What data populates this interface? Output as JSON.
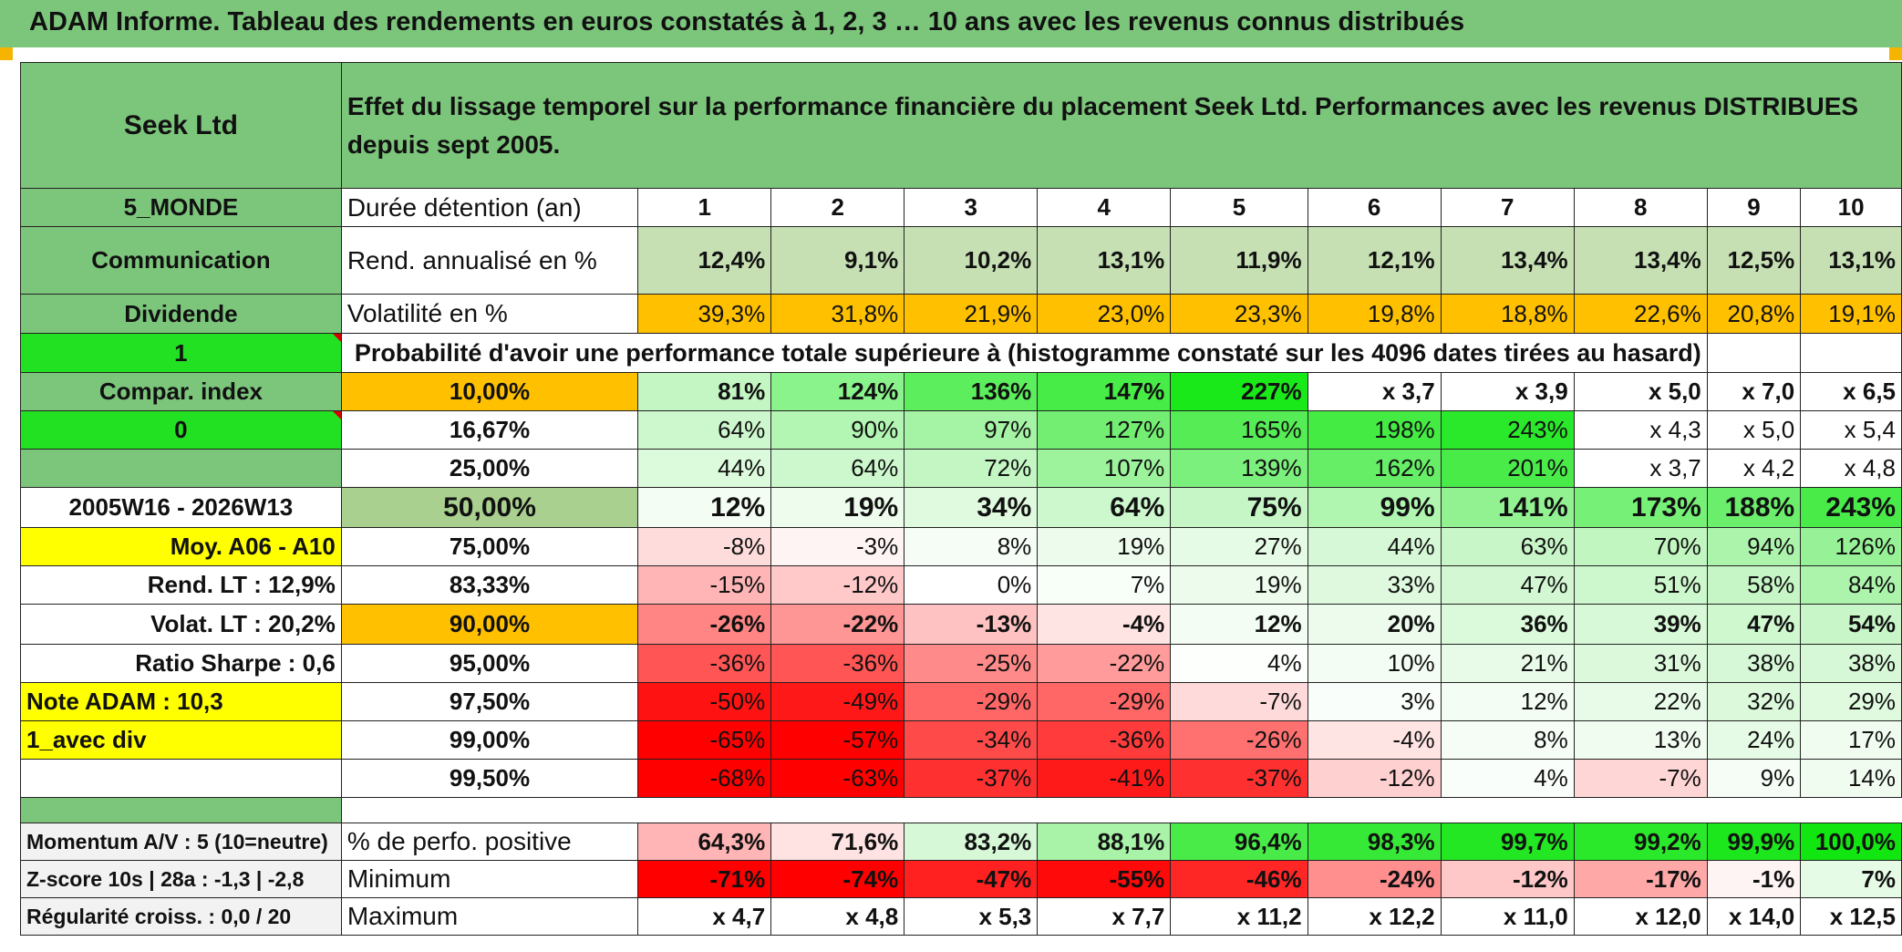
{
  "title": "ADAM Informe. Tableau des rendements en euros constatés à 1, 2, 3 … 10 ans avec les revenus connus distribués",
  "header": {
    "fund": "Seek Ltd",
    "description": "Effet du lissage temporel sur la performance financière du placement Seek Ltd. Performances avec les revenus DISTRIBUES depuis sept 2005."
  },
  "sidebar": {
    "region": "5_MONDE",
    "sector": "Communication",
    "dividend_label": "Dividende",
    "dividend_flag": "1",
    "compar_index": "Compar. index",
    "compar_flag": "0",
    "blank": "",
    "period": "2005W16 - 2026W13",
    "moy": "Moy. A06 - A10",
    "rend_lt": "Rend. LT :    12,9%",
    "volat_lt": "Volat. LT :    20,2%",
    "sharpe": "Ratio Sharpe :    0,6",
    "note": "Note ADAM : 10,3",
    "div_mode": "1_avec div"
  },
  "duration": {
    "label": "Durée détention (an)",
    "years": [
      "1",
      "2",
      "3",
      "4",
      "5",
      "6",
      "7",
      "8",
      "9",
      "10"
    ]
  },
  "rend": {
    "label": "Rend. annualisé en %",
    "values": [
      "12,4%",
      "9,1%",
      "10,2%",
      "13,1%",
      "11,9%",
      "12,1%",
      "13,4%",
      "13,4%",
      "12,5%",
      "13,1%"
    ]
  },
  "vol": {
    "label": "Volatilité en %",
    "values": [
      "39,3%",
      "31,8%",
      "21,9%",
      "23,0%",
      "23,3%",
      "19,8%",
      "18,8%",
      "22,6%",
      "20,8%",
      "19,1%"
    ]
  },
  "prob_header": "Probabilité d'avoir une performance totale supérieure à (histogramme constaté sur les 4096 dates tirées au hasard)",
  "prob_rows": [
    {
      "p": "10,00%",
      "values": [
        "81%",
        "124%",
        "136%",
        "147%",
        "227%",
        "x 3,7",
        "x 3,9",
        "x 5,0",
        "x 7,0",
        "x 6,5"
      ]
    },
    {
      "p": "16,67%",
      "values": [
        "64%",
        "90%",
        "97%",
        "127%",
        "165%",
        "198%",
        "243%",
        "x 4,3",
        "x 5,0",
        "x 5,4"
      ]
    },
    {
      "p": "25,00%",
      "values": [
        "44%",
        "64%",
        "72%",
        "107%",
        "139%",
        "162%",
        "201%",
        "x 3,7",
        "x 4,2",
        "x 4,8"
      ]
    },
    {
      "p": "50,00%",
      "values": [
        "12%",
        "19%",
        "34%",
        "64%",
        "75%",
        "99%",
        "141%",
        "173%",
        "188%",
        "243%"
      ]
    },
    {
      "p": "75,00%",
      "values": [
        "-8%",
        "-3%",
        "8%",
        "19%",
        "27%",
        "44%",
        "63%",
        "70%",
        "94%",
        "126%"
      ]
    },
    {
      "p": "83,33%",
      "values": [
        "-15%",
        "-12%",
        "0%",
        "7%",
        "19%",
        "33%",
        "47%",
        "51%",
        "58%",
        "84%"
      ]
    },
    {
      "p": "90,00%",
      "values": [
        "-26%",
        "-22%",
        "-13%",
        "-4%",
        "12%",
        "20%",
        "36%",
        "39%",
        "47%",
        "54%"
      ]
    },
    {
      "p": "95,00%",
      "values": [
        "-36%",
        "-36%",
        "-25%",
        "-22%",
        "4%",
        "10%",
        "21%",
        "31%",
        "38%",
        "38%"
      ]
    },
    {
      "p": "97,50%",
      "values": [
        "-50%",
        "-49%",
        "-29%",
        "-29%",
        "-7%",
        "3%",
        "12%",
        "22%",
        "32%",
        "29%"
      ]
    },
    {
      "p": "99,00%",
      "values": [
        "-65%",
        "-57%",
        "-34%",
        "-36%",
        "-26%",
        "-4%",
        "8%",
        "13%",
        "24%",
        "17%"
      ]
    },
    {
      "p": "99,50%",
      "values": [
        "-68%",
        "-63%",
        "-37%",
        "-41%",
        "-37%",
        "-12%",
        "4%",
        "-7%",
        "9%",
        "14%"
      ]
    }
  ],
  "stats": [
    {
      "side": "Momentum A/V : 5 (10=neutre)",
      "label": "% de perfo. positive",
      "values": [
        "64,3%",
        "71,6%",
        "83,2%",
        "88,1%",
        "96,4%",
        "98,3%",
        "99,7%",
        "99,2%",
        "99,9%",
        "100,0%"
      ]
    },
    {
      "side": "Z-score 10s | 28a : -1,3 | -2,8",
      "label": "Minimum",
      "values": [
        "-71%",
        "-74%",
        "-47%",
        "-55%",
        "-46%",
        "-24%",
        "-12%",
        "-17%",
        "-1%",
        "7%"
      ]
    },
    {
      "side": "Régularité croiss. : 0,0 / 20",
      "label": "Maximum",
      "values": [
        "x 4,7",
        "x 4,8",
        "x 5,3",
        "x 7,7",
        "x 11,2",
        "x 12,2",
        "x 11,0",
        "x 12,0",
        "x 14,0",
        "x 12,5"
      ]
    }
  ],
  "colors": {
    "header_green": "#7cc67c",
    "rend_bg": "#c6e0b4",
    "vol_bg": "#ffc000",
    "flag_green": "#22e022",
    "note_yellow": "#ffff00",
    "label_red": "#e00000",
    "median_bg": "#a9d08e"
  },
  "styles": {
    "prob_bg": [
      [
        "#c3f6c3",
        "#8bf38b",
        "#5cee5c",
        "#47ec47",
        "#19e919",
        "#ffffff",
        "#ffffff",
        "#ffffff",
        "#ffffff",
        "#ffffff"
      ],
      [
        "#cdf8cd",
        "#b3f5b3",
        "#a5f3a5",
        "#73ee73",
        "#55ec55",
        "#43eb43",
        "#2ae82a",
        "#ffffff",
        "#ffffff",
        "#ffffff"
      ],
      [
        "#dcfadc",
        "#cdf8cd",
        "#c3f6c3",
        "#9cf39c",
        "#7cf07c",
        "#67ee67",
        "#49eb49",
        "#ffffff",
        "#ffffff",
        "#ffffff"
      ],
      [
        "#f4fdf4",
        "#eefced",
        "#e0fadf",
        "#cdf8cd",
        "#c6f6c6",
        "#b0f5b0",
        "#92f292",
        "#77f077",
        "#6bee6b",
        "#49eb49"
      ],
      [
        "#ffdcdc",
        "#fff4f4",
        "#f6fdf6",
        "#ecfbec",
        "#e6fbe6",
        "#d6f8d6",
        "#c8f6c8",
        "#c1f6c1",
        "#acf4ac",
        "#97f197"
      ],
      [
        "#ffb5b5",
        "#ffc9c9",
        "#ffffff",
        "#f8fef8",
        "#ecfbec",
        "#dff9df",
        "#d2f7d2",
        "#cdf8cd",
        "#c6f6c6",
        "#acf4ac"
      ],
      [
        "#ff8585",
        "#ff9696",
        "#ffc2c2",
        "#ffe4e4",
        "#f3fdf3",
        "#ecfbec",
        "#dbf9db",
        "#d8f9d8",
        "#cff8cf",
        "#c8f6c8"
      ],
      [
        "#ff5555",
        "#ff5555",
        "#ff8a8a",
        "#ff9b9b",
        "#fcfffc",
        "#f4fdf4",
        "#e8fbe8",
        "#dcf9dc",
        "#d6f8d6",
        "#d6f8d6"
      ],
      [
        "#ff1212",
        "#ff1818",
        "#ff6666",
        "#ff6666",
        "#ffdada",
        "#fafefa",
        "#f3fdf3",
        "#e8fbe8",
        "#dcf9dc",
        "#e0fadf"
      ],
      [
        "#ff0000",
        "#ff0000",
        "#ff4a4a",
        "#ff3b3b",
        "#ff7070",
        "#ffe4e4",
        "#f6fdf6",
        "#f1fcf1",
        "#e6fbe6",
        "#f0fcf0"
      ],
      [
        "#ff0000",
        "#ff0000",
        "#ff3030",
        "#ff1a1a",
        "#ff3030",
        "#ffd0d0",
        "#fafefa",
        "#ffd6d6",
        "#f6fdf6",
        "#f1fcf1"
      ]
    ],
    "stats_bg": [
      [
        "#ffb5b5",
        "#ffe2e2",
        "#d6f8d6",
        "#a8f3a8",
        "#49eb49",
        "#36e936",
        "#22e722",
        "#2ae82a",
        "#1ce71c",
        "#11e611"
      ],
      [
        "#ff0000",
        "#ff0000",
        "#ff2020",
        "#ff0a0a",
        "#ff2626",
        "#ff8e8e",
        "#ffc8c8",
        "#ffa8a8",
        "#fff4f4",
        "#e6fbe6"
      ],
      [
        "#ffffff",
        "#ffffff",
        "#ffffff",
        "#ffffff",
        "#ffffff",
        "#ffffff",
        "#ffffff",
        "#ffffff",
        "#ffffff",
        "#ffffff"
      ]
    ]
  }
}
